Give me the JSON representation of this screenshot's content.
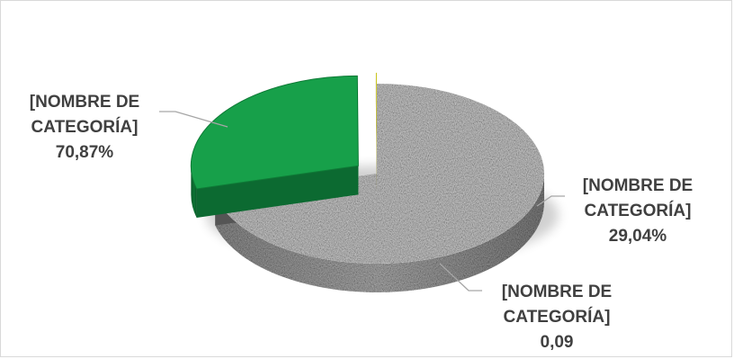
{
  "chart_data": {
    "type": "pie",
    "slices": [
      {
        "label_line1": "[NOMBRE DE",
        "label_line2": "CATEGORÍA]",
        "value": 70.87,
        "value_label": "70,87%",
        "color": "#b9b9b9"
      },
      {
        "label_line1": "[NOMBRE DE",
        "label_line2": "CATEGORÍA]",
        "value": 29.04,
        "value_label": "29,04%",
        "color": "#17a04a"
      },
      {
        "label_line1": "[NOMBRE DE",
        "label_line2": "CATEGORÍA]",
        "value": 0.09,
        "value_label": "0,09",
        "color": "#c9c41a"
      }
    ],
    "style": "3d-exploded",
    "legend": "none"
  }
}
